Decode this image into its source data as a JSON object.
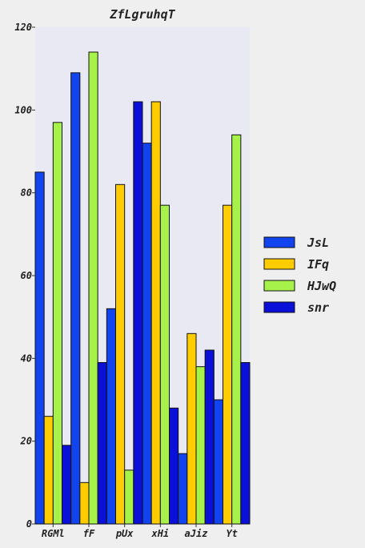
{
  "chart_data": {
    "type": "bar",
    "title": "ZfLgruhqT",
    "xlabel": "",
    "ylabel": "",
    "categories": [
      "RGMl",
      "fF",
      "pUx",
      "xHi",
      "aJiz",
      "Yt"
    ],
    "ylim": [
      0,
      120
    ],
    "yticks": [
      0,
      20,
      40,
      60,
      80,
      100,
      120
    ],
    "grid": false,
    "legend_position": "right",
    "series": [
      {
        "name": "JsL",
        "color": "#1144ee",
        "values": [
          85,
          109,
          52,
          92,
          17,
          30
        ]
      },
      {
        "name": "IFq",
        "color": "#ffcc00",
        "values": [
          26,
          10,
          82,
          102,
          46,
          77
        ]
      },
      {
        "name": "HJwQ",
        "color": "#a6f24a",
        "values": [
          97,
          114,
          13,
          77,
          38,
          94
        ]
      },
      {
        "name": "snr",
        "color": "#0a10d8",
        "values": [
          19,
          39,
          102,
          28,
          42,
          39
        ]
      }
    ]
  }
}
